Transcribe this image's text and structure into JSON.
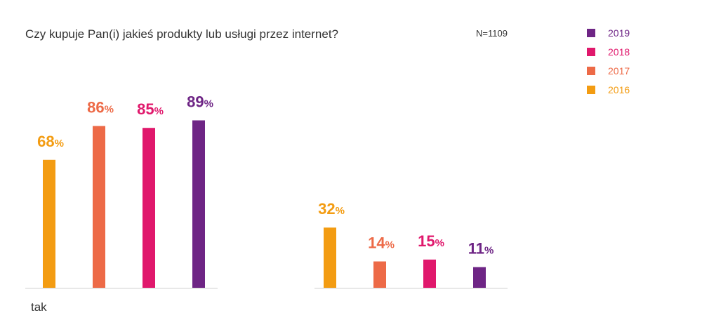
{
  "chart_data": {
    "type": "bar",
    "title": "Czy kupuje Pan(i) jakieś produkty lub usługi przez internet?",
    "sample_size": "N=1109",
    "categories": [
      "tak",
      ""
    ],
    "value_suffix": "%",
    "legend_placement": "top-right",
    "legend_order": [
      "2019",
      "2018",
      "2017",
      "2016"
    ],
    "series": [
      {
        "name": "2016",
        "color": "#F39C12",
        "values": [
          68,
          32
        ],
        "labels": [
          "68",
          "32"
        ]
      },
      {
        "name": "2017",
        "color": "#ED6A47",
        "values": [
          86,
          14
        ],
        "labels": [
          "86",
          "14"
        ]
      },
      {
        "name": "2018",
        "color": "#E0186C",
        "values": [
          85,
          15
        ],
        "labels": [
          "85",
          "15"
        ]
      },
      {
        "name": "2019",
        "color": "#6E2585",
        "values": [
          89,
          11
        ],
        "labels": [
          "89",
          "11"
        ]
      }
    ],
    "ylim": [
      0,
      100
    ],
    "grid": false
  }
}
